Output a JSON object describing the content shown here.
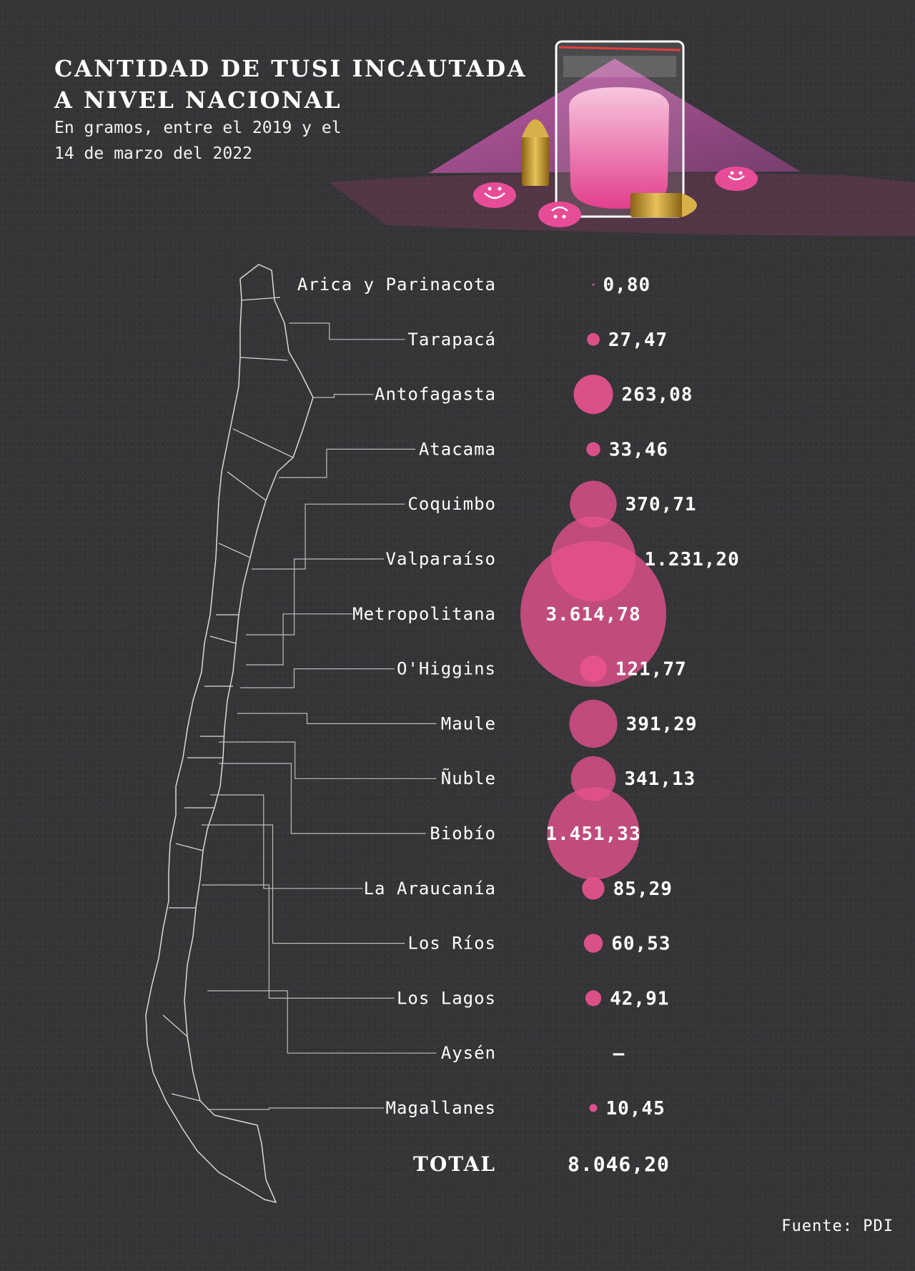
{
  "title_line1": "CANTIDAD DE TUSI INCAUTADA",
  "title_line2": "A NIVEL NACIONAL",
  "subtitle_line1": "En gramos, entre el 2019 y el",
  "subtitle_line2": "14 de marzo del 2022",
  "source": "Fuente: PDI",
  "colors": {
    "background": "#353437",
    "bubble": "#e8528f",
    "map_outline": "#d9d9d9",
    "leader_line": "#bdbdbd"
  },
  "chart_data": {
    "type": "bubble",
    "unit": "gramos",
    "categories": [
      "Arica y Parinacota",
      "Tarapacá",
      "Antofagasta",
      "Atacama",
      "Coquimbo",
      "Valparaíso",
      "Metropolitana",
      "O'Higgins",
      "Maule",
      "Ñuble",
      "Biobío",
      "La Araucanía",
      "Los Ríos",
      "Los Lagos",
      "Aysén",
      "Magallanes"
    ],
    "values": [
      0.8,
      27.47,
      263.08,
      33.46,
      370.71,
      1231.2,
      3614.78,
      121.77,
      391.29,
      341.13,
      1451.33,
      85.29,
      60.53,
      42.91,
      null,
      10.45
    ],
    "value_labels": [
      "0,80",
      "27,47",
      "263,08",
      "33,46",
      "370,71",
      "1.231,20",
      "3.614,78",
      "121,77",
      "391,29",
      "341,13",
      "1.451,33",
      "85,29",
      "60,53",
      "42,91",
      "–",
      "10,45"
    ],
    "total_label": "TOTAL",
    "total_value": "8.046,20"
  }
}
